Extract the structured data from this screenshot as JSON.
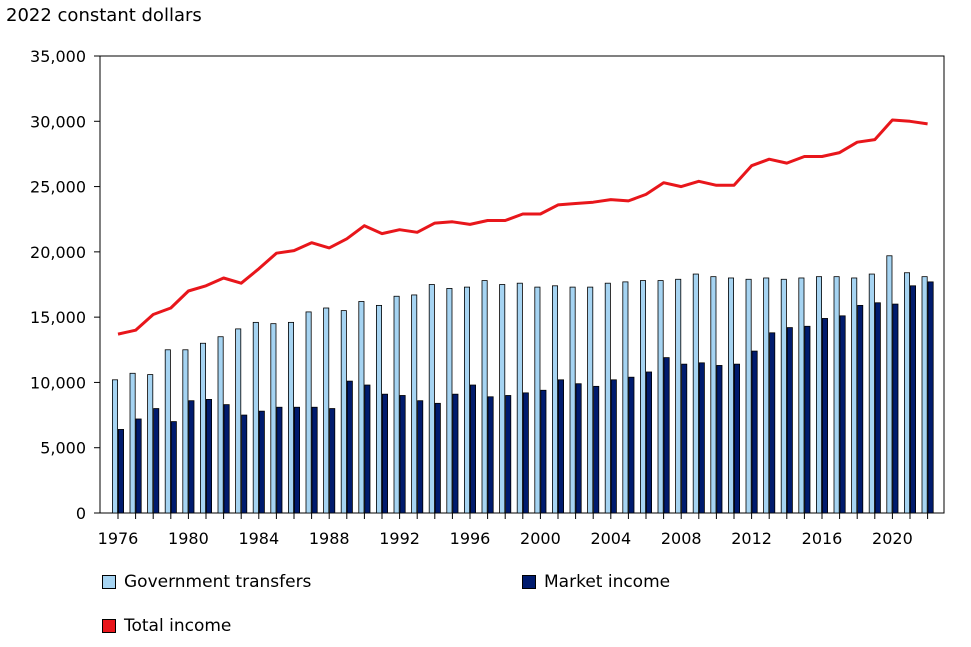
{
  "chart_data": {
    "type": "bar",
    "ylabel": "2022 constant dollars",
    "xlabel": "",
    "ylim": [
      0,
      35000
    ],
    "yticks": [
      "0",
      "5,000",
      "10,000",
      "15,000",
      "20,000",
      "25,000",
      "30,000",
      "35,000"
    ],
    "x_tick_labels": [
      "1976",
      "1980",
      "1984",
      "1988",
      "1992",
      "1996",
      "2000",
      "2004",
      "2008",
      "2012",
      "2016",
      "2020"
    ],
    "grid": false,
    "legend_position": "bottom",
    "categories": [
      1976,
      1977,
      1978,
      1979,
      1980,
      1981,
      1982,
      1983,
      1984,
      1985,
      1986,
      1987,
      1988,
      1989,
      1990,
      1991,
      1992,
      1993,
      1994,
      1995,
      1996,
      1997,
      1998,
      1999,
      2000,
      2001,
      2002,
      2003,
      2004,
      2005,
      2006,
      2007,
      2008,
      2009,
      2010,
      2011,
      2012,
      2013,
      2014,
      2015,
      2016,
      2017,
      2018,
      2019,
      2020,
      2021,
      2022
    ],
    "series": [
      {
        "name": "Government transfers",
        "kind": "bar",
        "color": "#a6d4f2",
        "values": [
          10200,
          10700,
          10600,
          12500,
          12500,
          13000,
          13500,
          14100,
          14600,
          14500,
          14600,
          15400,
          15700,
          15500,
          16200,
          15900,
          16600,
          16700,
          17500,
          17200,
          17300,
          17800,
          17500,
          17600,
          17300,
          17400,
          17300,
          17300,
          17600,
          17700,
          17800,
          17800,
          17900,
          18300,
          18100,
          18000,
          17900,
          18000,
          17900,
          18000,
          18100,
          18100,
          18000,
          18300,
          19700,
          18400,
          18100
        ]
      },
      {
        "name": "Market income",
        "kind": "bar",
        "color": "#001b6e",
        "values": [
          6400,
          7200,
          8000,
          7000,
          8600,
          8700,
          8300,
          7500,
          7800,
          8100,
          8100,
          8100,
          8000,
          10100,
          9800,
          9100,
          9000,
          8600,
          8400,
          9100,
          9800,
          8900,
          9000,
          9200,
          9400,
          10200,
          9900,
          9700,
          10200,
          10400,
          10800,
          11900,
          11400,
          11500,
          11300,
          11400,
          12400,
          13800,
          14200,
          14300,
          14900,
          15100,
          15900,
          16100,
          16000,
          17400,
          17700
        ]
      },
      {
        "name": "Total income",
        "kind": "line",
        "color": "#e8161b",
        "values": [
          13700,
          14000,
          15200,
          15700,
          17000,
          17400,
          18000,
          17600,
          18700,
          19900,
          20100,
          20700,
          20300,
          21000,
          22000,
          21400,
          21700,
          21500,
          22200,
          22300,
          22100,
          22400,
          22400,
          22900,
          22900,
          23600,
          23700,
          23800,
          24000,
          23900,
          24400,
          25300,
          25000,
          25400,
          25100,
          25100,
          26600,
          27100,
          26800,
          27300,
          27300,
          27600,
          28400,
          28600,
          30100,
          30000,
          29800
        ]
      }
    ]
  }
}
